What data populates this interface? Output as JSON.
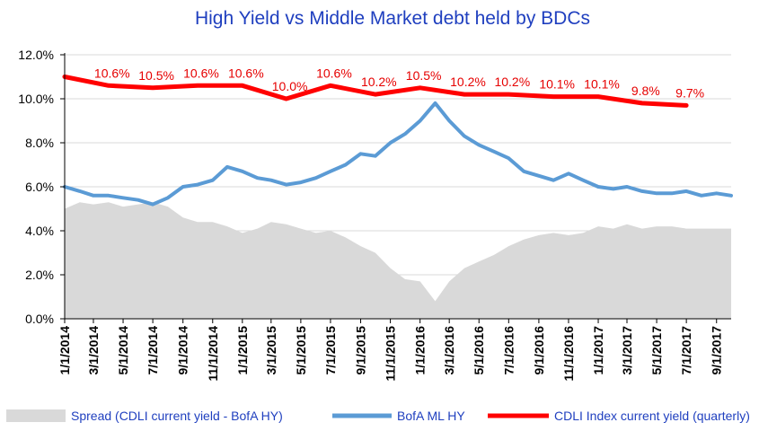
{
  "chart_data": {
    "type": "line",
    "title": "High Yield  vs  Middle Market debt held by BDCs",
    "xlabel": "",
    "ylabel": "",
    "ylim": [
      0,
      12
    ],
    "yticks": [
      "0.0%",
      "2.0%",
      "4.0%",
      "6.0%",
      "8.0%",
      "10.0%",
      "12.0%"
    ],
    "xticks": [
      "1/1/2014",
      "3/1/2014",
      "5/1/2014",
      "7/1/2014",
      "9/1/2014",
      "11/1/2014",
      "1/1/2015",
      "3/1/2015",
      "5/1/2015",
      "7/1/2015",
      "9/1/2015",
      "11/1/2015",
      "1/1/2016",
      "3/1/2016",
      "5/1/2016",
      "7/1/2016",
      "9/1/2016",
      "11/1/2016",
      "1/1/2017",
      "3/1/2017",
      "5/1/2017",
      "7/1/2017",
      "9/1/2017"
    ],
    "x_range": [
      "2014-01-01",
      "2017-10-01"
    ],
    "grid": "horizontal",
    "legend": "bottom",
    "series": [
      {
        "name": "Spread (CDLI current yield - BofA HY)",
        "kind": "area",
        "color": "#d9d9d9",
        "points": [
          [
            "2014-01-01",
            5.0
          ],
          [
            "2014-02-01",
            5.3
          ],
          [
            "2014-03-01",
            5.2
          ],
          [
            "2014-04-01",
            5.3
          ],
          [
            "2014-05-01",
            5.1
          ],
          [
            "2014-06-01",
            5.2
          ],
          [
            "2014-07-01",
            5.3
          ],
          [
            "2014-08-01",
            5.1
          ],
          [
            "2014-09-01",
            4.6
          ],
          [
            "2014-10-01",
            4.4
          ],
          [
            "2014-11-01",
            4.4
          ],
          [
            "2014-12-01",
            4.2
          ],
          [
            "2015-01-01",
            3.9
          ],
          [
            "2015-02-01",
            4.1
          ],
          [
            "2015-03-01",
            4.4
          ],
          [
            "2015-04-01",
            4.3
          ],
          [
            "2015-05-01",
            4.1
          ],
          [
            "2015-06-01",
            3.9
          ],
          [
            "2015-07-01",
            4.0
          ],
          [
            "2015-08-01",
            3.7
          ],
          [
            "2015-09-01",
            3.3
          ],
          [
            "2015-10-01",
            3.0
          ],
          [
            "2015-11-01",
            2.3
          ],
          [
            "2015-12-01",
            1.8
          ],
          [
            "2016-01-01",
            1.7
          ],
          [
            "2016-02-01",
            0.8
          ],
          [
            "2016-03-01",
            1.7
          ],
          [
            "2016-04-01",
            2.3
          ],
          [
            "2016-05-01",
            2.6
          ],
          [
            "2016-06-01",
            2.9
          ],
          [
            "2016-07-01",
            3.3
          ],
          [
            "2016-08-01",
            3.6
          ],
          [
            "2016-09-01",
            3.8
          ],
          [
            "2016-10-01",
            3.9
          ],
          [
            "2016-11-01",
            3.8
          ],
          [
            "2016-12-01",
            3.9
          ],
          [
            "2017-01-01",
            4.2
          ],
          [
            "2017-02-01",
            4.1
          ],
          [
            "2017-03-01",
            4.3
          ],
          [
            "2017-04-01",
            4.1
          ],
          [
            "2017-05-01",
            4.2
          ],
          [
            "2017-06-01",
            4.2
          ],
          [
            "2017-07-01",
            4.1
          ],
          [
            "2017-08-01",
            4.1
          ],
          [
            "2017-09-01",
            4.1
          ],
          [
            "2017-10-01",
            4.1
          ]
        ]
      },
      {
        "name": "BofA ML HY",
        "kind": "line",
        "color": "#5b9bd5",
        "points": [
          [
            "2014-01-01",
            6.0
          ],
          [
            "2014-02-01",
            5.8
          ],
          [
            "2014-03-01",
            5.6
          ],
          [
            "2014-04-01",
            5.6
          ],
          [
            "2014-05-01",
            5.5
          ],
          [
            "2014-06-01",
            5.4
          ],
          [
            "2014-07-01",
            5.2
          ],
          [
            "2014-08-01",
            5.5
          ],
          [
            "2014-09-01",
            6.0
          ],
          [
            "2014-10-01",
            6.1
          ],
          [
            "2014-11-01",
            6.3
          ],
          [
            "2014-12-01",
            6.9
          ],
          [
            "2015-01-01",
            6.7
          ],
          [
            "2015-02-01",
            6.4
          ],
          [
            "2015-03-01",
            6.3
          ],
          [
            "2015-04-01",
            6.1
          ],
          [
            "2015-05-01",
            6.2
          ],
          [
            "2015-06-01",
            6.4
          ],
          [
            "2015-07-01",
            6.7
          ],
          [
            "2015-08-01",
            7.0
          ],
          [
            "2015-09-01",
            7.5
          ],
          [
            "2015-10-01",
            7.4
          ],
          [
            "2015-11-01",
            8.0
          ],
          [
            "2015-12-01",
            8.4
          ],
          [
            "2016-01-01",
            9.0
          ],
          [
            "2016-02-01",
            9.8
          ],
          [
            "2016-03-01",
            9.0
          ],
          [
            "2016-04-01",
            8.3
          ],
          [
            "2016-05-01",
            7.9
          ],
          [
            "2016-06-01",
            7.6
          ],
          [
            "2016-07-01",
            7.3
          ],
          [
            "2016-08-01",
            6.7
          ],
          [
            "2016-09-01",
            6.5
          ],
          [
            "2016-10-01",
            6.3
          ],
          [
            "2016-11-01",
            6.6
          ],
          [
            "2016-12-01",
            6.3
          ],
          [
            "2017-01-01",
            6.0
          ],
          [
            "2017-02-01",
            5.9
          ],
          [
            "2017-03-01",
            6.0
          ],
          [
            "2017-04-01",
            5.8
          ],
          [
            "2017-05-01",
            5.7
          ],
          [
            "2017-06-01",
            5.7
          ],
          [
            "2017-07-01",
            5.8
          ],
          [
            "2017-08-01",
            5.6
          ],
          [
            "2017-09-01",
            5.7
          ],
          [
            "2017-10-01",
            5.6
          ]
        ]
      },
      {
        "name": "CDLI Index current yield (quarterly)",
        "kind": "line",
        "color": "#ff0000",
        "points": [
          [
            "2014-01-01",
            11.0
          ],
          [
            "2014-04-01",
            10.6
          ],
          [
            "2014-07-01",
            10.5
          ],
          [
            "2014-10-01",
            10.6
          ],
          [
            "2015-01-01",
            10.6
          ],
          [
            "2015-04-01",
            10.0
          ],
          [
            "2015-07-01",
            10.6
          ],
          [
            "2015-10-01",
            10.2
          ],
          [
            "2016-01-01",
            10.5
          ],
          [
            "2016-04-01",
            10.2
          ],
          [
            "2016-07-01",
            10.2
          ],
          [
            "2016-10-01",
            10.1
          ],
          [
            "2017-01-01",
            10.1
          ],
          [
            "2017-04-01",
            9.8
          ],
          [
            "2017-07-01",
            9.7
          ]
        ],
        "data_labels": [
          {
            "date": "2014-04-01",
            "value": 10.6,
            "text": "10.6%"
          },
          {
            "date": "2014-07-01",
            "value": 10.5,
            "text": "10.5%"
          },
          {
            "date": "2014-10-01",
            "value": 10.6,
            "text": "10.6%"
          },
          {
            "date": "2015-01-01",
            "value": 10.6,
            "text": "10.6%"
          },
          {
            "date": "2015-04-01",
            "value": 10.0,
            "text": "10.0%"
          },
          {
            "date": "2015-07-01",
            "value": 10.6,
            "text": "10.6%"
          },
          {
            "date": "2015-10-01",
            "value": 10.2,
            "text": "10.2%"
          },
          {
            "date": "2016-01-01",
            "value": 10.5,
            "text": "10.5%"
          },
          {
            "date": "2016-04-01",
            "value": 10.2,
            "text": "10.2%"
          },
          {
            "date": "2016-07-01",
            "value": 10.2,
            "text": "10.2%"
          },
          {
            "date": "2016-10-01",
            "value": 10.1,
            "text": "10.1%"
          },
          {
            "date": "2017-01-01",
            "value": 10.1,
            "text": "10.1%"
          },
          {
            "date": "2017-04-01",
            "value": 9.8,
            "text": "9.8%"
          },
          {
            "date": "2017-07-01",
            "value": 9.7,
            "text": "9.7%"
          }
        ]
      }
    ]
  }
}
